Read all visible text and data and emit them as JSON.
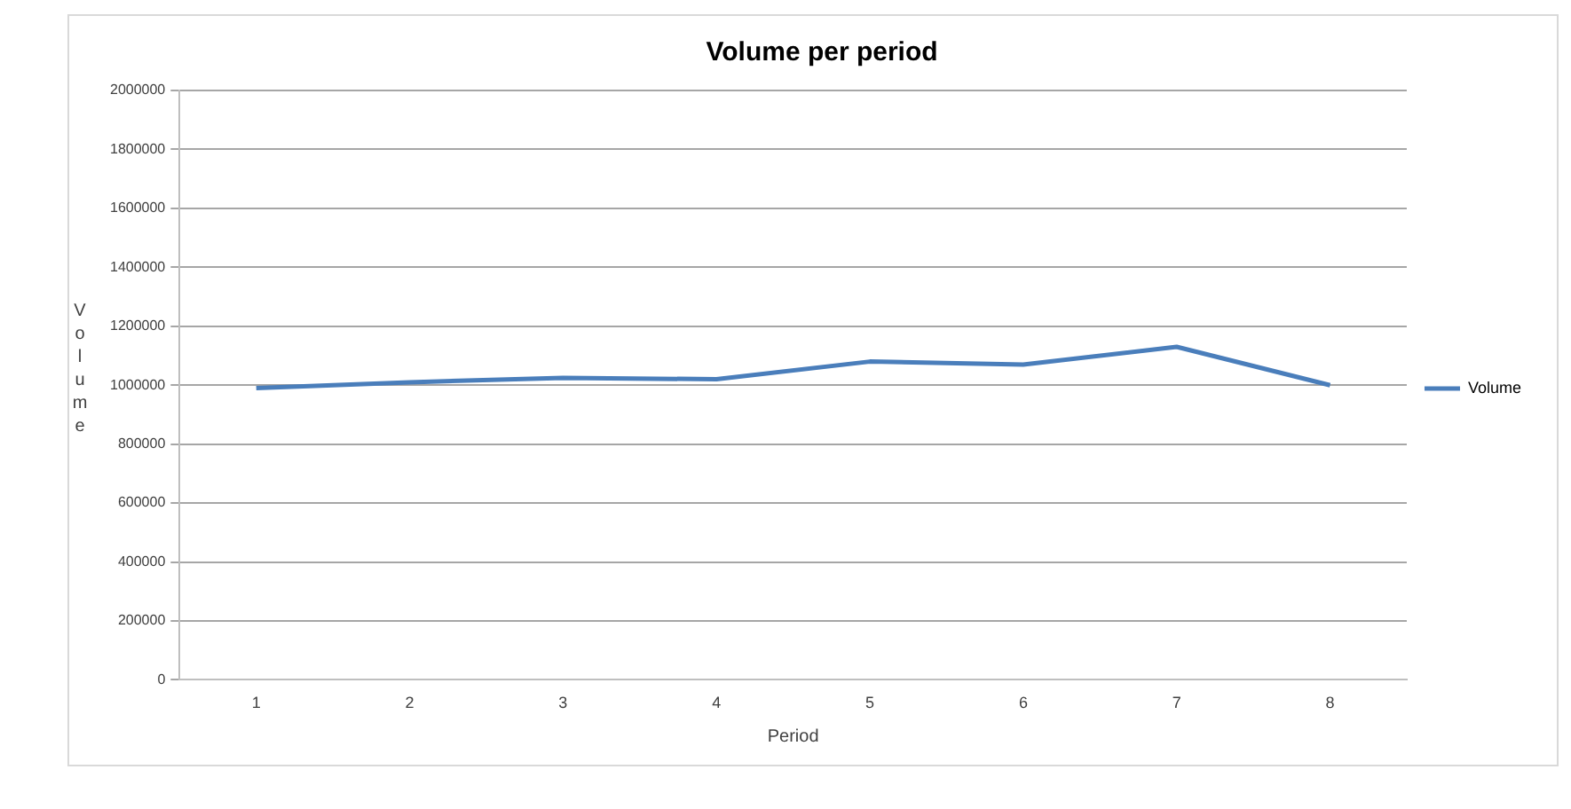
{
  "chart_data": {
    "type": "line",
    "title": "Volume per period",
    "xlabel": "Period",
    "ylabel": "Volume",
    "categories": [
      "1",
      "2",
      "3",
      "4",
      "5",
      "6",
      "7",
      "8"
    ],
    "series": [
      {
        "name": "Volume",
        "color": "#4a7ebb",
        "values": [
          990000,
          1010000,
          1025000,
          1020000,
          1080000,
          1070000,
          1130000,
          1000000
        ]
      }
    ],
    "ylim": [
      0,
      2000000
    ],
    "yticks": [
      0,
      200000,
      400000,
      600000,
      800000,
      1000000,
      1200000,
      1400000,
      1600000,
      1800000,
      2000000
    ],
    "grid": "y",
    "legend": "right",
    "marker": "none",
    "line_style": "solid"
  }
}
